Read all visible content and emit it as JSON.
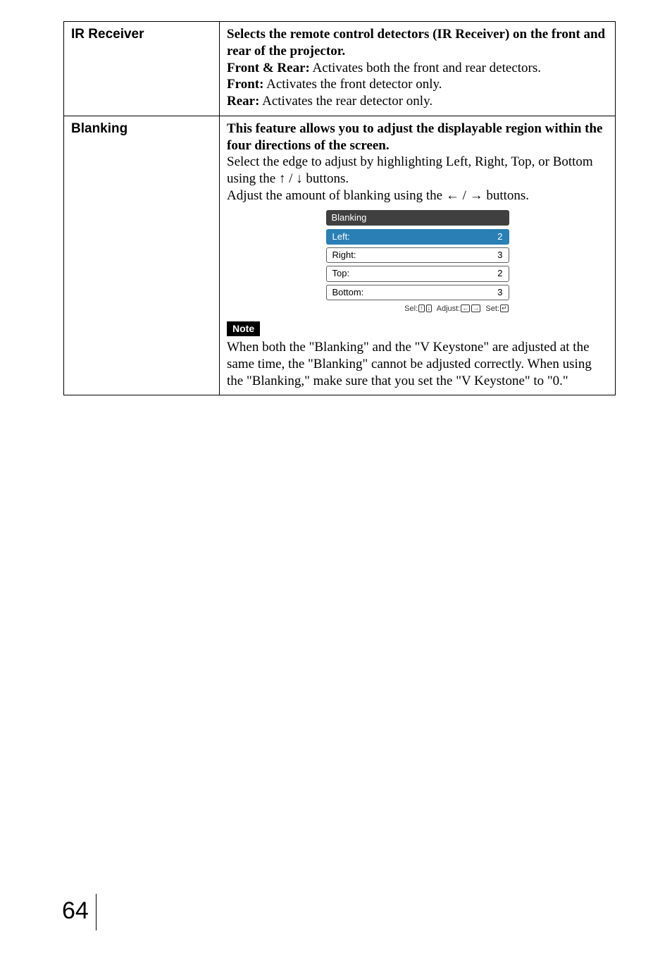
{
  "rows": {
    "ir": {
      "label": "IR Receiver",
      "line1_bold": "Selects the remote control detectors (IR Receiver) on the front and rear of the projector.",
      "line2_b": "Front & Rear:",
      "line2_r": " Activates both the front and rear detectors.",
      "line3_b": "Front:",
      "line3_r": " Activates the front detector only.",
      "line4_b": "Rear:",
      "line4_r": " Activates the rear detector only."
    },
    "bl": {
      "label": "Blanking",
      "intro_bold": "This feature allows you to adjust the displayable region within the four directions of the screen.",
      "para1a": "Select the edge to adjust by highlighting Left, Right, Top, or Bottom using the ",
      "para1b": " buttons.",
      "para2a": "Adjust the amount of blanking using the ",
      "para2b": " buttons.",
      "note_label": "Note",
      "note_text": "When both the \"Blanking\" and the \"V Keystone\" are adjusted at the same time, the \"Blanking\" cannot be adjusted correctly. When using the \"Blanking,\" make sure that you set the \"V Keystone\" to \"0.\""
    }
  },
  "panel": {
    "title": "Blanking",
    "rows": [
      {
        "label": "Left:",
        "value": "2",
        "selected": true
      },
      {
        "label": "Right:",
        "value": "3",
        "selected": false
      },
      {
        "label": "Top:",
        "value": "2",
        "selected": false
      },
      {
        "label": "Bottom:",
        "value": "3",
        "selected": false
      }
    ],
    "hint_sel": "Sel:",
    "hint_adj": "Adjust:",
    "hint_set": "Set:"
  },
  "arrows": {
    "up": "↑",
    "down": "↓",
    "left": "←",
    "right": "→",
    "enter": "↵"
  },
  "pageNumber": "64"
}
